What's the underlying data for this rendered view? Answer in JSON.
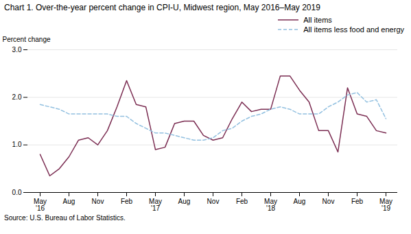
{
  "chart_data": {
    "type": "line",
    "title": "Chart 1. Over-the-year percent change in CPI-U, Midwest region, May 2016–May 2019",
    "ylabel": "Percent change",
    "source": "Source: U.S. Bureau of Labor Statistics.",
    "categories": [
      "May\n'16",
      null,
      null,
      "Aug",
      null,
      null,
      "Nov",
      null,
      null,
      "Feb",
      null,
      null,
      "May\n'17",
      null,
      null,
      "Aug",
      null,
      null,
      "Nov",
      null,
      null,
      "Feb",
      null,
      null,
      "May\n'18",
      null,
      null,
      "Aug",
      null,
      null,
      "Nov",
      null,
      null,
      "Feb",
      null,
      null,
      "May\n'19"
    ],
    "series": [
      {
        "name": "All items",
        "color": "#7B2D52",
        "line_style": "solid",
        "values": [
          0.8,
          0.35,
          0.5,
          0.75,
          1.1,
          1.15,
          1.0,
          1.3,
          1.8,
          2.35,
          1.85,
          1.8,
          0.9,
          0.95,
          1.45,
          1.5,
          1.5,
          1.2,
          1.1,
          1.15,
          1.55,
          1.9,
          1.7,
          1.75,
          1.75,
          2.45,
          2.45,
          2.15,
          1.9,
          1.3,
          1.3,
          0.85,
          2.2,
          1.65,
          1.6,
          1.3,
          1.25
        ]
      },
      {
        "name": "All items less food and energy",
        "color": "#92C0E0",
        "line_style": "dashed",
        "values": [
          1.85,
          1.8,
          1.75,
          1.65,
          1.65,
          1.65,
          1.65,
          1.65,
          1.6,
          1.6,
          1.45,
          1.35,
          1.25,
          1.25,
          1.2,
          1.15,
          1.1,
          1.1,
          1.15,
          1.3,
          1.35,
          1.5,
          1.6,
          1.65,
          1.75,
          1.8,
          1.75,
          1.65,
          1.65,
          1.65,
          1.8,
          1.9,
          2.05,
          2.1,
          1.9,
          1.95,
          1.55
        ]
      }
    ],
    "ylim": [
      0.0,
      3.0
    ],
    "yticks": [
      {
        "value": 0,
        "label": "0.0"
      },
      {
        "value": 1,
        "label": "1.0"
      },
      {
        "value": 2,
        "label": "2.0"
      },
      {
        "value": 3,
        "label": "3.0"
      }
    ],
    "grid": true,
    "legend": "upper right"
  }
}
